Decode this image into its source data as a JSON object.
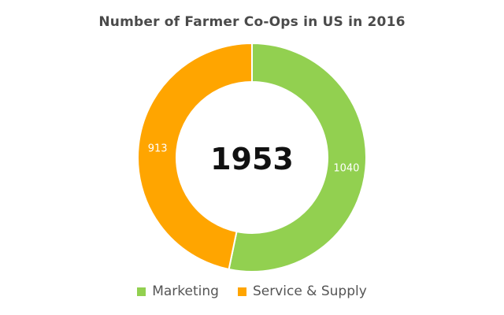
{
  "chart_data": {
    "type": "pie",
    "title": "Number of Farmer Co-Ops in US in 2016",
    "center_label": "1953",
    "categories": [
      "Marketing",
      "Service & Supply"
    ],
    "values": [
      1040,
      913
    ],
    "colors": [
      "#92d050",
      "#ffa500"
    ],
    "donut": true,
    "legend_position": "bottom"
  }
}
